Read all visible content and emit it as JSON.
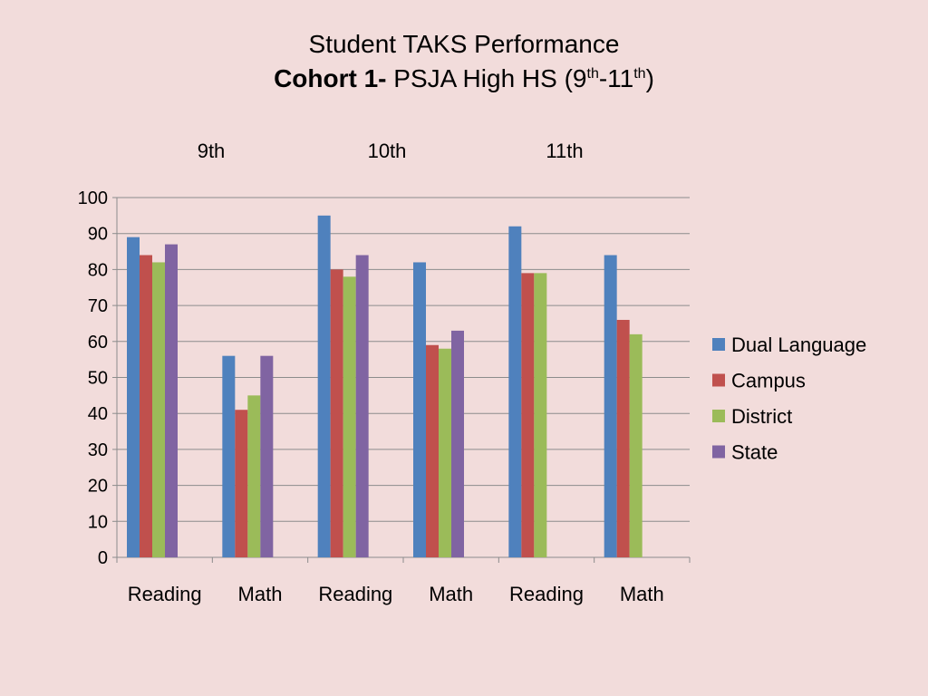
{
  "title": {
    "line1": "Student TAKS Performance",
    "line2_bold": "Cohort 1-",
    "line2_text": " PSJA High HS (9",
    "sup1": "th",
    "dash": "-11",
    "sup2": "th",
    "close": ")"
  },
  "grades": [
    "9th",
    "10th",
    "11th"
  ],
  "colors": {
    "Dual Language": "#4f81bd",
    "Campus": "#c0504d",
    "District": "#9bbb59",
    "State": "#8064a2"
  },
  "chart_data": {
    "type": "bar",
    "categories": [
      "Reading",
      "Math",
      "Reading",
      "Math",
      "Reading",
      "Math"
    ],
    "series": [
      {
        "name": "Dual Language",
        "values": [
          89,
          56,
          95,
          82,
          92,
          84
        ]
      },
      {
        "name": "Campus",
        "values": [
          84,
          41,
          80,
          59,
          79,
          66
        ]
      },
      {
        "name": "District",
        "values": [
          82,
          45,
          78,
          58,
          79,
          62
        ]
      },
      {
        "name": "State",
        "values": [
          87,
          56,
          84,
          63,
          null,
          null
        ]
      }
    ],
    "ylim": [
      0,
      100
    ],
    "yticks": [
      0,
      10,
      20,
      30,
      40,
      50,
      60,
      70,
      80,
      90,
      100
    ],
    "grid": true,
    "legend": "right"
  }
}
